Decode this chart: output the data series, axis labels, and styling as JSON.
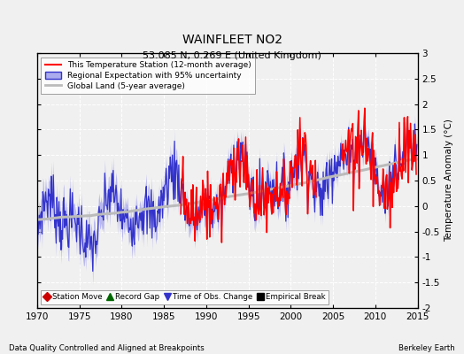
{
  "title": "WAINFLEET NO2",
  "subtitle": "53.085 N, 0.269 E (United Kingdom)",
  "ylabel": "Temperature Anomaly (°C)",
  "xlabel_note": "Data Quality Controlled and Aligned at Breakpoints",
  "credit": "Berkeley Earth",
  "xlim": [
    1970,
    2015
  ],
  "ylim": [
    -2,
    3
  ],
  "yticks": [
    -2,
    -1.5,
    -1,
    -0.5,
    0,
    0.5,
    1,
    1.5,
    2,
    2.5,
    3
  ],
  "xticks": [
    1970,
    1975,
    1980,
    1985,
    1990,
    1995,
    2000,
    2005,
    2010,
    2015
  ],
  "station_color": "#ff0000",
  "regional_color": "#3333cc",
  "regional_fill_color": "#aaaaee",
  "global_color": "#bbbbbb",
  "bg_color": "#f0f0f0",
  "legend_labels": [
    "This Temperature Station (12-month average)",
    "Regional Expectation with 95% uncertainty",
    "Global Land (5-year average)"
  ],
  "marker_legend": [
    {
      "label": "Station Move",
      "color": "#cc0000",
      "marker": "D"
    },
    {
      "label": "Record Gap",
      "color": "#006600",
      "marker": "^"
    },
    {
      "label": "Time of Obs. Change",
      "color": "#3333cc",
      "marker": "v"
    },
    {
      "label": "Empirical Break",
      "color": "#000000",
      "marker": "s"
    }
  ]
}
